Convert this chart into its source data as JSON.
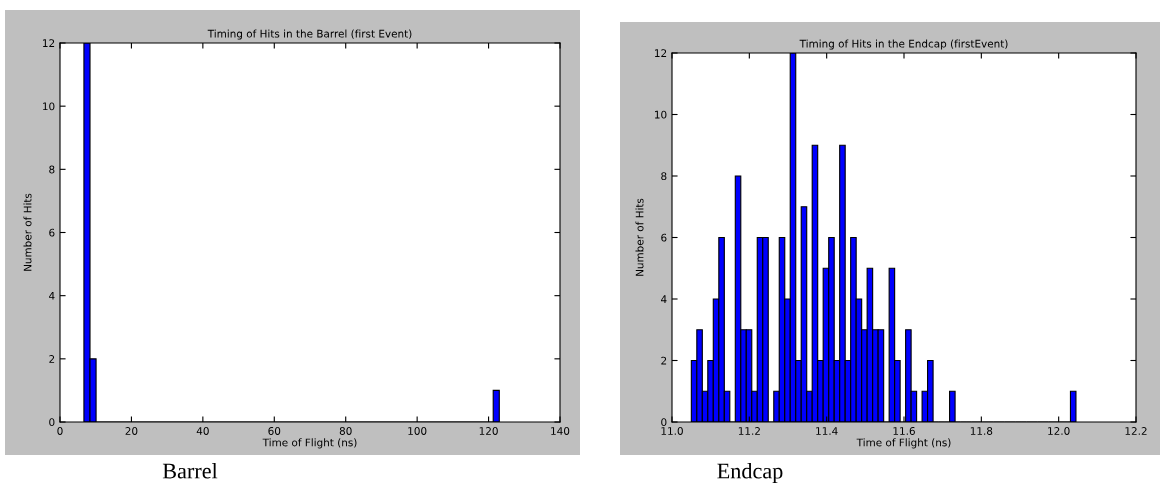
{
  "chart_data": [
    {
      "type": "histogram",
      "title": "Timing of Hits in the Barrel (first Event)",
      "xlabel": "Time of Flight (ns)",
      "ylabel": "Number of Hits",
      "color": "#0000ff",
      "bins": [
        6.7,
        8.4,
        10.1,
        121.3,
        123.0
      ],
      "values": [
        12,
        2,
        0,
        1
      ],
      "xlim": [
        0,
        140
      ],
      "xticks": [
        0,
        20,
        40,
        60,
        80,
        100,
        120,
        140
      ],
      "ylim": [
        0,
        12
      ],
      "yticks": [
        0,
        2,
        4,
        6,
        8,
        10,
        12
      ],
      "grid": false,
      "annotations": [
        "Barrel"
      ]
    },
    {
      "type": "histogram",
      "title": "Timing of Hits in the Endcap (firstEvent)",
      "xlabel": "Time of Flight (ns)",
      "ylabel": "Number of Hits",
      "color": "#0000ff",
      "bins": [
        11.05,
        11.0642,
        11.0784,
        11.0926,
        11.1068,
        11.1211,
        11.1353,
        11.1495,
        11.1637,
        11.1779,
        11.1921,
        11.2063,
        11.2205,
        11.2347,
        11.2489,
        11.2632,
        11.2774,
        11.2916,
        11.3058,
        11.32,
        11.3342,
        11.3484,
        11.3626,
        11.3768,
        11.391,
        11.4053,
        11.4195,
        11.4337,
        11.4479,
        11.4621,
        11.4763,
        11.4905,
        11.5047,
        11.5189,
        11.5331,
        11.5474,
        11.5616,
        11.5758,
        11.59,
        11.6042,
        11.6184,
        11.6326,
        11.6468,
        11.661,
        11.6752,
        11.6895,
        11.7037,
        11.7179,
        11.7321,
        11.7463,
        11.7605,
        11.7747,
        11.7889,
        11.8031,
        11.8173,
        11.8316,
        11.8458,
        11.86,
        11.8742,
        11.8884,
        11.9026,
        11.9168,
        11.931,
        11.9452,
        11.9594,
        11.9737,
        11.9879,
        12.0021,
        12.0163,
        12.0305,
        12.0447
      ],
      "values": [
        2,
        3,
        1,
        2,
        4,
        6,
        1,
        0,
        8,
        3,
        3,
        1,
        6,
        6,
        0,
        1,
        6,
        4,
        12,
        2,
        7,
        1,
        9,
        2,
        5,
        6,
        2,
        9,
        2,
        6,
        4,
        3,
        5,
        3,
        3,
        0,
        5,
        2,
        0,
        3,
        1,
        0,
        1,
        2,
        0,
        0,
        0,
        1,
        0,
        0,
        0,
        0,
        0,
        0,
        0,
        0,
        0,
        0,
        0,
        0,
        0,
        0,
        0,
        0,
        0,
        0,
        0,
        0,
        0,
        1
      ],
      "xlim": [
        11.0,
        12.2
      ],
      "xticks": [
        {
          "value": 11.0,
          "label": "11.0"
        },
        {
          "value": 11.2,
          "label": "11.2"
        },
        {
          "value": 11.4,
          "label": "11.4"
        },
        {
          "value": 11.6,
          "label": "11.6"
        },
        {
          "value": 11.8,
          "label": "11.8"
        },
        {
          "value": 12.0,
          "label": "12.0"
        },
        {
          "value": 12.2,
          "label": "12.2"
        }
      ],
      "ylim": [
        0,
        12
      ],
      "yticks": [
        0,
        2,
        4,
        6,
        8,
        10,
        12
      ],
      "grid": false,
      "annotations": [
        "Endcap"
      ]
    }
  ]
}
